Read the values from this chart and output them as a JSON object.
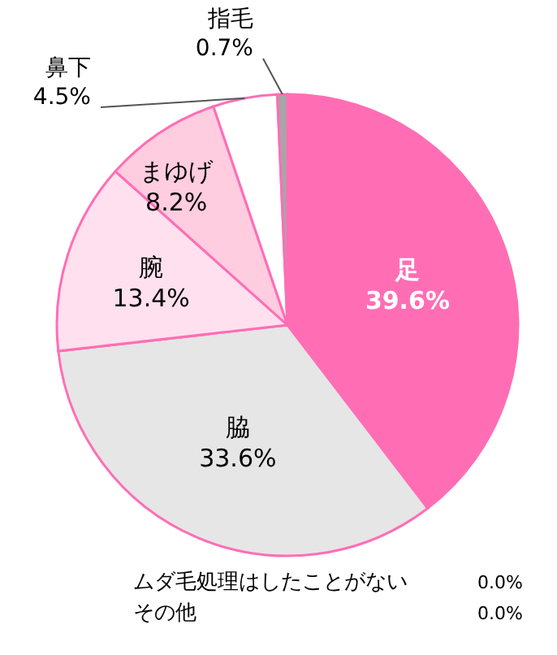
{
  "chart_data": {
    "type": "pie",
    "categories": [
      "足",
      "脇",
      "腕",
      "まゆげ",
      "鼻下",
      "指毛",
      "ムダ毛処理はしたことがない",
      "その他"
    ],
    "values": [
      39.6,
      33.6,
      13.4,
      8.2,
      4.5,
      0.7,
      0.0,
      0.0
    ],
    "value_labels": [
      "39.6%",
      "33.6%",
      "13.4%",
      "8.2%",
      "4.5%",
      "0.7%",
      "0.0%",
      "0.0%"
    ],
    "colors": [
      "#ff6eb4",
      "#e6e6e6",
      "#ffe0ee",
      "#ffcce0",
      "#ffffff",
      "#a6a6a6",
      null,
      null
    ]
  }
}
